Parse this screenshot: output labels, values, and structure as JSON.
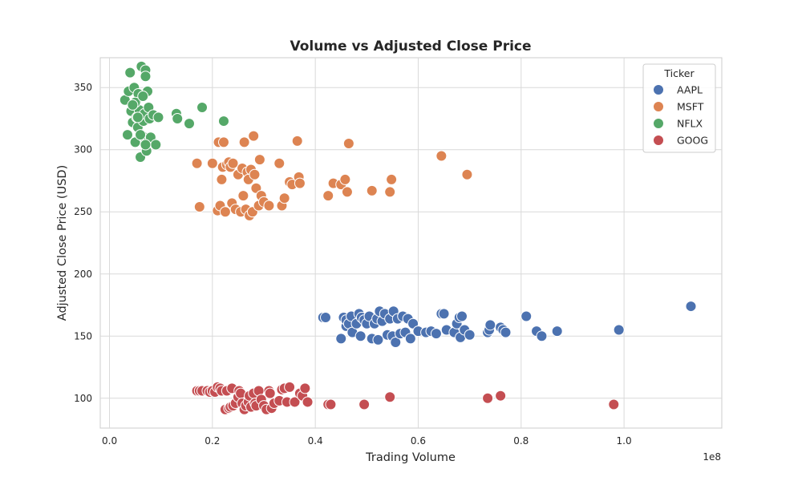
{
  "chart_data": {
    "type": "scatter",
    "title": "Volume vs Adjusted Close Price",
    "xlabel": "Trading Volume",
    "ylabel": "Adjusted Close Price (USD)",
    "x_scale_note": "1e8",
    "xlim": [
      -0.018,
      1.19
    ],
    "ylim": [
      76,
      374
    ],
    "x_ticks": [
      0.0,
      0.2,
      0.4,
      0.6,
      0.8,
      1.0
    ],
    "x_tick_labels": [
      "0.0",
      "0.2",
      "0.4",
      "0.6",
      "0.8",
      "1.0"
    ],
    "y_ticks": [
      100,
      150,
      200,
      250,
      300,
      350
    ],
    "y_tick_labels": [
      "100",
      "150",
      "200",
      "250",
      "300",
      "350"
    ],
    "grid": true,
    "legend": {
      "title": "Ticker",
      "placement": "top-right"
    },
    "series": [
      {
        "name": "AAPL",
        "color": "#4c72b0",
        "points": [
          [
            0.415,
            165
          ],
          [
            0.42,
            165
          ],
          [
            0.45,
            148
          ],
          [
            0.455,
            165
          ],
          [
            0.46,
            158
          ],
          [
            0.46,
            163
          ],
          [
            0.465,
            160
          ],
          [
            0.47,
            166
          ],
          [
            0.472,
            153
          ],
          [
            0.48,
            160
          ],
          [
            0.485,
            168
          ],
          [
            0.488,
            150
          ],
          [
            0.49,
            165
          ],
          [
            0.495,
            163
          ],
          [
            0.5,
            160
          ],
          [
            0.505,
            166
          ],
          [
            0.51,
            148
          ],
          [
            0.515,
            160
          ],
          [
            0.52,
            164
          ],
          [
            0.522,
            147
          ],
          [
            0.525,
            170
          ],
          [
            0.53,
            162
          ],
          [
            0.535,
            168
          ],
          [
            0.54,
            151
          ],
          [
            0.545,
            164
          ],
          [
            0.55,
            150
          ],
          [
            0.552,
            170
          ],
          [
            0.556,
            145
          ],
          [
            0.56,
            164
          ],
          [
            0.565,
            152
          ],
          [
            0.57,
            166
          ],
          [
            0.575,
            153
          ],
          [
            0.58,
            164
          ],
          [
            0.585,
            148
          ],
          [
            0.59,
            160
          ],
          [
            0.6,
            154
          ],
          [
            0.615,
            153
          ],
          [
            0.625,
            154
          ],
          [
            0.635,
            152
          ],
          [
            0.645,
            168
          ],
          [
            0.65,
            168
          ],
          [
            0.655,
            155
          ],
          [
            0.67,
            153
          ],
          [
            0.675,
            160
          ],
          [
            0.68,
            165
          ],
          [
            0.682,
            149
          ],
          [
            0.685,
            166
          ],
          [
            0.69,
            155
          ],
          [
            0.7,
            151
          ],
          [
            0.735,
            153
          ],
          [
            0.738,
            155
          ],
          [
            0.74,
            159
          ],
          [
            0.76,
            157
          ],
          [
            0.765,
            155
          ],
          [
            0.77,
            153
          ],
          [
            0.81,
            166
          ],
          [
            0.83,
            154
          ],
          [
            0.84,
            150
          ],
          [
            0.87,
            154
          ],
          [
            0.99,
            155
          ],
          [
            1.13,
            174
          ]
        ]
      },
      {
        "name": "MSFT",
        "color": "#dd8452",
        "points": [
          [
            0.17,
            289
          ],
          [
            0.175,
            254
          ],
          [
            0.2,
            289
          ],
          [
            0.21,
            251
          ],
          [
            0.212,
            306
          ],
          [
            0.215,
            255
          ],
          [
            0.218,
            276
          ],
          [
            0.22,
            286
          ],
          [
            0.222,
            306
          ],
          [
            0.225,
            250
          ],
          [
            0.228,
            288
          ],
          [
            0.232,
            290
          ],
          [
            0.235,
            286
          ],
          [
            0.238,
            257
          ],
          [
            0.24,
            289
          ],
          [
            0.245,
            252
          ],
          [
            0.25,
            280
          ],
          [
            0.255,
            250
          ],
          [
            0.258,
            285
          ],
          [
            0.26,
            263
          ],
          [
            0.262,
            306
          ],
          [
            0.265,
            252
          ],
          [
            0.268,
            282
          ],
          [
            0.27,
            276
          ],
          [
            0.272,
            247
          ],
          [
            0.275,
            284
          ],
          [
            0.278,
            250
          ],
          [
            0.28,
            311
          ],
          [
            0.282,
            280
          ],
          [
            0.285,
            269
          ],
          [
            0.29,
            255
          ],
          [
            0.292,
            292
          ],
          [
            0.295,
            263
          ],
          [
            0.3,
            258
          ],
          [
            0.31,
            255
          ],
          [
            0.33,
            289
          ],
          [
            0.335,
            255
          ],
          [
            0.34,
            261
          ],
          [
            0.35,
            274
          ],
          [
            0.355,
            272
          ],
          [
            0.365,
            307
          ],
          [
            0.368,
            278
          ],
          [
            0.37,
            273
          ],
          [
            0.425,
            263
          ],
          [
            0.435,
            273
          ],
          [
            0.45,
            272
          ],
          [
            0.458,
            276
          ],
          [
            0.462,
            266
          ],
          [
            0.465,
            305
          ],
          [
            0.51,
            267
          ],
          [
            0.545,
            266
          ],
          [
            0.548,
            276
          ],
          [
            0.645,
            295
          ],
          [
            0.695,
            280
          ]
        ]
      },
      {
        "name": "NFLX",
        "color": "#55a868",
        "points": [
          [
            0.03,
            340
          ],
          [
            0.035,
            312
          ],
          [
            0.037,
            347
          ],
          [
            0.04,
            362
          ],
          [
            0.042,
            331
          ],
          [
            0.045,
            322
          ],
          [
            0.048,
            350
          ],
          [
            0.05,
            306
          ],
          [
            0.052,
            339
          ],
          [
            0.053,
            326
          ],
          [
            0.055,
            318
          ],
          [
            0.056,
            345
          ],
          [
            0.058,
            332
          ],
          [
            0.06,
            294
          ],
          [
            0.062,
            367
          ],
          [
            0.064,
            311
          ],
          [
            0.066,
            323
          ],
          [
            0.068,
            329
          ],
          [
            0.07,
            364
          ],
          [
            0.072,
            299
          ],
          [
            0.074,
            347
          ],
          [
            0.076,
            334
          ],
          [
            0.078,
            325
          ],
          [
            0.08,
            310
          ],
          [
            0.085,
            328
          ],
          [
            0.09,
            304
          ],
          [
            0.095,
            326
          ],
          [
            0.13,
            329
          ],
          [
            0.132,
            325
          ],
          [
            0.155,
            321
          ],
          [
            0.18,
            334
          ],
          [
            0.222,
            323
          ],
          [
            0.07,
            359
          ],
          [
            0.07,
            304
          ],
          [
            0.05,
            338
          ],
          [
            0.06,
            312
          ],
          [
            0.045,
            336
          ],
          [
            0.055,
            326
          ],
          [
            0.065,
            343
          ]
        ]
      },
      {
        "name": "GOOG",
        "color": "#c44e52",
        "points": [
          [
            0.17,
            106
          ],
          [
            0.175,
            106
          ],
          [
            0.18,
            106
          ],
          [
            0.19,
            106
          ],
          [
            0.195,
            105
          ],
          [
            0.2,
            106
          ],
          [
            0.205,
            105
          ],
          [
            0.21,
            109
          ],
          [
            0.215,
            108
          ],
          [
            0.218,
            106
          ],
          [
            0.225,
            91
          ],
          [
            0.228,
            106
          ],
          [
            0.232,
            92
          ],
          [
            0.235,
            93
          ],
          [
            0.238,
            108
          ],
          [
            0.24,
            94
          ],
          [
            0.245,
            96
          ],
          [
            0.25,
            101
          ],
          [
            0.252,
            106
          ],
          [
            0.255,
            104
          ],
          [
            0.258,
            96
          ],
          [
            0.262,
            91
          ],
          [
            0.265,
            94
          ],
          [
            0.27,
            97
          ],
          [
            0.272,
            102
          ],
          [
            0.275,
            93
          ],
          [
            0.28,
            104
          ],
          [
            0.283,
            96
          ],
          [
            0.285,
            94
          ],
          [
            0.29,
            106
          ],
          [
            0.295,
            99
          ],
          [
            0.3,
            94
          ],
          [
            0.305,
            91
          ],
          [
            0.31,
            106
          ],
          [
            0.312,
            104
          ],
          [
            0.315,
            92
          ],
          [
            0.32,
            96
          ],
          [
            0.33,
            98
          ],
          [
            0.335,
            107
          ],
          [
            0.34,
            108
          ],
          [
            0.345,
            97
          ],
          [
            0.35,
            109
          ],
          [
            0.36,
            97
          ],
          [
            0.37,
            104
          ],
          [
            0.375,
            102
          ],
          [
            0.38,
            108
          ],
          [
            0.385,
            97
          ],
          [
            0.425,
            95
          ],
          [
            0.43,
            95
          ],
          [
            0.495,
            95
          ],
          [
            0.545,
            101
          ],
          [
            0.735,
            100
          ],
          [
            0.76,
            102
          ],
          [
            0.98,
            95
          ]
        ]
      }
    ]
  }
}
